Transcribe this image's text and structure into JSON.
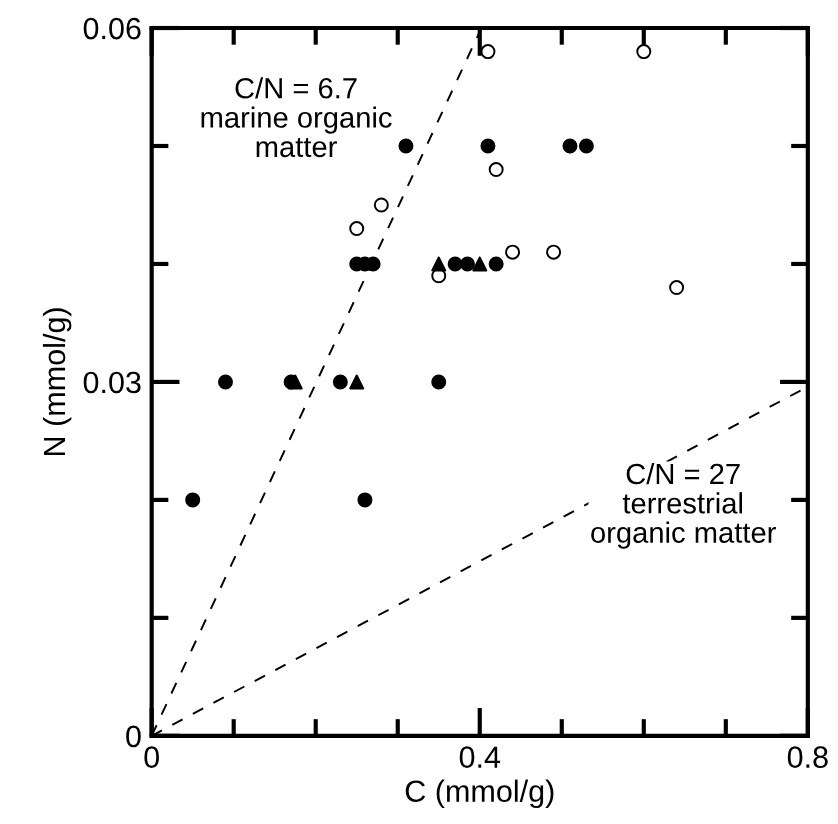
{
  "chart_data": {
    "type": "scatter",
    "xlabel": "C (mmol/g)",
    "ylabel": "N (mmol/g)",
    "xlim": [
      0,
      0.8
    ],
    "ylim": [
      0,
      0.06
    ],
    "xticks": [
      0,
      {
        "value": 0.1,
        "label": null
      },
      {
        "value": 0.2,
        "label": null
      },
      {
        "value": 0.3,
        "label": null
      },
      0.4,
      {
        "value": 0.5,
        "label": null
      },
      {
        "value": 0.6,
        "label": null
      },
      {
        "value": 0.7,
        "label": null
      },
      0.8
    ],
    "yticks": [
      0,
      {
        "value": 0.01,
        "label": null
      },
      {
        "value": 0.02,
        "label": null
      },
      0.03,
      {
        "value": 0.04,
        "label": null
      },
      {
        "value": 0.05,
        "label": null
      },
      0.06
    ],
    "grid": false,
    "legend": false,
    "series": [
      {
        "marker": "circle",
        "color": "#000000",
        "x": [
          0.05,
          0.26,
          0.09,
          0.17,
          0.23,
          0.35,
          0.25,
          0.26,
          0.27,
          0.37,
          0.385,
          0.42,
          0.31,
          0.41,
          0.51,
          0.53
        ],
        "values": [
          0.02,
          0.02,
          0.03,
          0.03,
          0.03,
          0.03,
          0.04,
          0.04,
          0.04,
          0.04,
          0.04,
          0.04,
          0.05,
          0.05,
          0.05,
          0.05
        ]
      },
      {
        "type": "scatter",
        "marker": "circle",
        "color": "#ffffff",
        "x": [
          0.35,
          0.44,
          0.49,
          0.64,
          0.25,
          0.28,
          0.42,
          0.41,
          0.6
        ],
        "values": [
          0.039,
          0.041,
          0.041,
          0.038,
          0.043,
          0.045,
          0.048,
          0.058,
          0.058
        ]
      },
      {
        "type": "scatter",
        "marker": "triangle",
        "color": "#000000",
        "x": [
          0.175,
          0.25,
          0.35,
          0.4
        ],
        "values": [
          0.03,
          0.03,
          0.04,
          0.04
        ]
      },
      {
        "type": "line",
        "line_style": "dashed",
        "marker": "none",
        "color": "#000000",
        "x": [
          0,
          0.4
        ],
        "values": [
          0,
          0.0597
        ]
      },
      {
        "type": "line",
        "line_style": "dashed",
        "marker": "none",
        "color": "#000000",
        "x": [
          0,
          0.8
        ],
        "values": [
          0,
          0.0296
        ]
      }
    ],
    "annotations": [
      "C/N = 6.7\nmarine organic\nmatter",
      "C/N = 27\nterrestrial\norganic matter"
    ]
  }
}
